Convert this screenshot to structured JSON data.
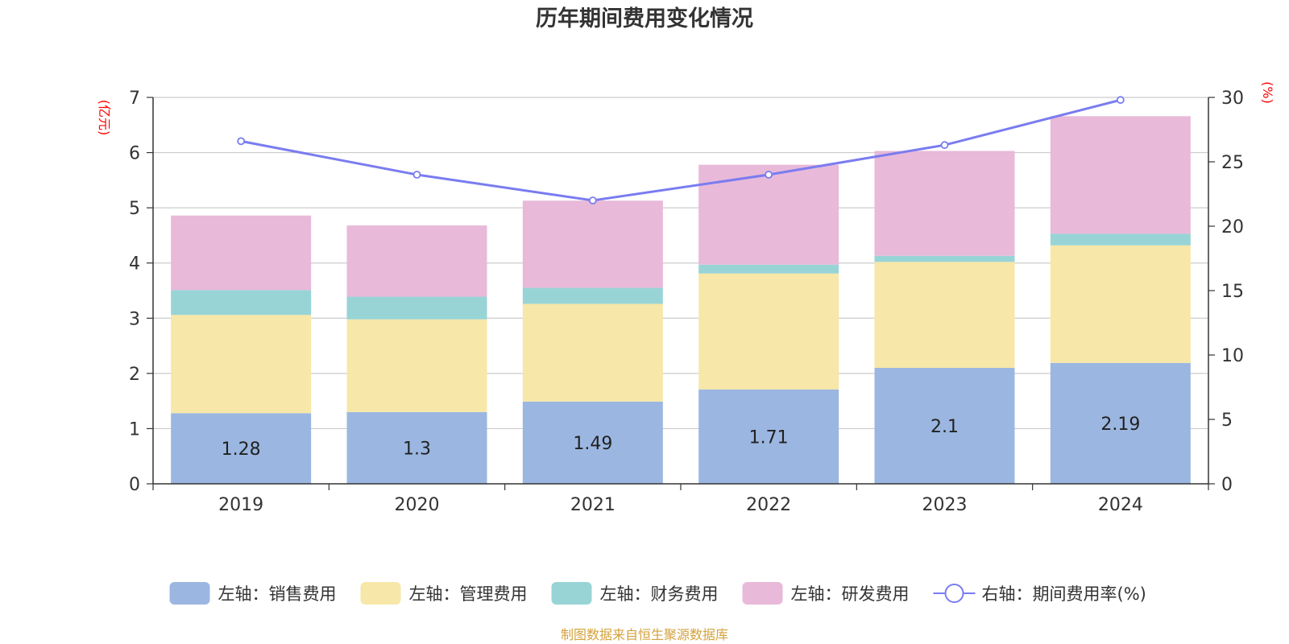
{
  "chart_data": {
    "type": "bar",
    "title": "历年期间费用变化情况",
    "categories": [
      "2019",
      "2020",
      "2021",
      "2022",
      "2023",
      "2024"
    ],
    "stacked": true,
    "series": [
      {
        "name": "左轴：销售费用",
        "axis": "left",
        "color": "#9bb7e1",
        "values": [
          1.28,
          1.3,
          1.49,
          1.71,
          2.1,
          2.19
        ],
        "data_labels": [
          "1.28",
          "1.3",
          "1.49",
          "1.71",
          "2.1",
          "2.19"
        ]
      },
      {
        "name": "左轴：管理费用",
        "axis": "left",
        "color": "#f7e7a8",
        "values": [
          1.78,
          1.68,
          1.77,
          2.1,
          1.92,
          2.13
        ]
      },
      {
        "name": "左轴：财务费用",
        "axis": "left",
        "color": "#98d4d6",
        "values": [
          0.45,
          0.41,
          0.29,
          0.16,
          0.11,
          0.21
        ]
      },
      {
        "name": "左轴：研发费用",
        "axis": "left",
        "color": "#e8b9d9",
        "values": [
          1.35,
          1.29,
          1.58,
          1.81,
          1.9,
          2.13
        ]
      }
    ],
    "line_series": {
      "name": "右轴：期间费用率(%)",
      "axis": "right",
      "color": "#7a7cf0",
      "values": [
        26.6,
        24.0,
        22.0,
        24.0,
        26.3,
        29.8
      ]
    },
    "left_axis": {
      "unit": "(亿元)",
      "ylim": [
        0,
        7
      ],
      "ticks": [
        "0",
        "1",
        "2",
        "3",
        "4",
        "5",
        "6",
        "7"
      ]
    },
    "right_axis": {
      "unit": "(%)",
      "ylim": [
        0,
        30
      ],
      "ticks": [
        "0",
        "5",
        "10",
        "15",
        "20",
        "25",
        "30"
      ]
    },
    "grid": true,
    "legend_position": "bottom",
    "unit_color": "#ff0000"
  },
  "source_note": "制图数据来自恒生聚源数据库",
  "source_color": "#d4a23c"
}
